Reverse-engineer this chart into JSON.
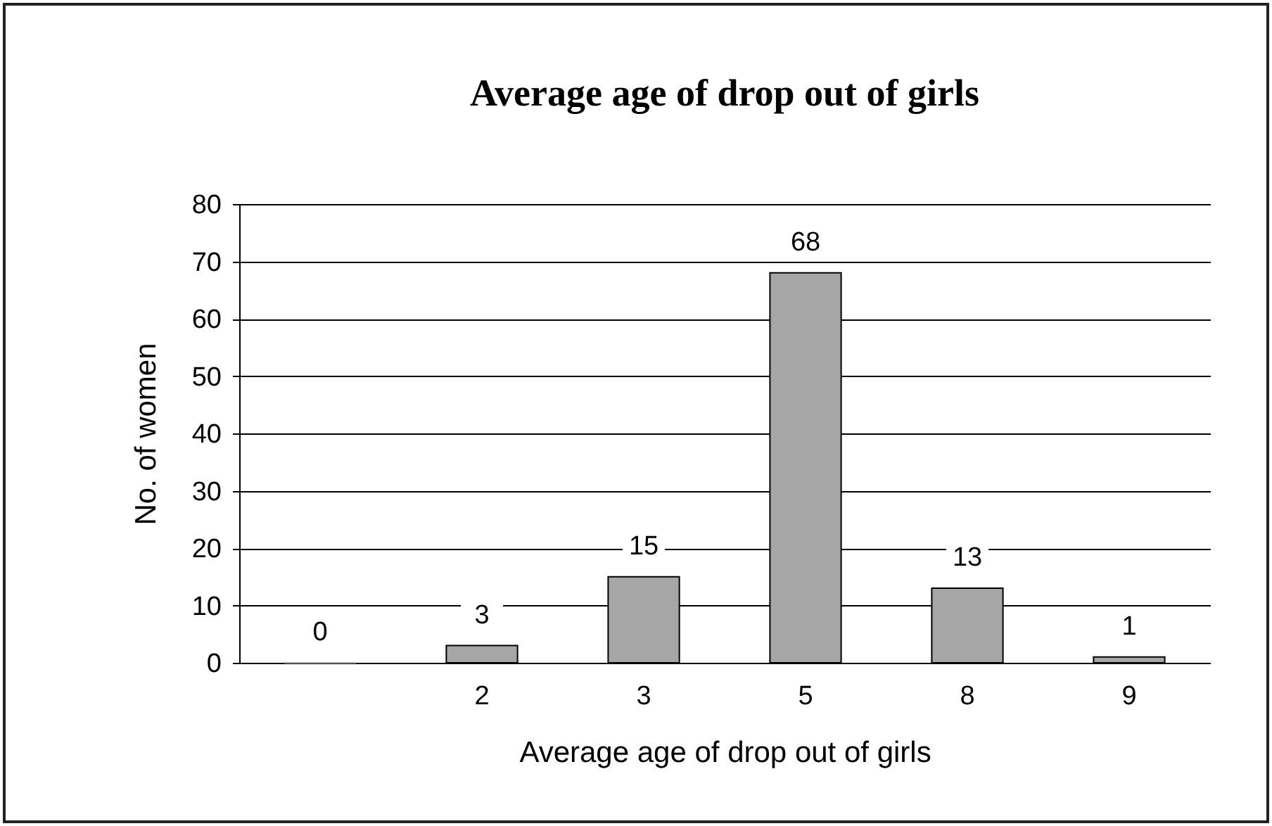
{
  "chart_data": {
    "type": "bar",
    "title": "Average age of drop out of girls",
    "xlabel": "Average age of drop out of girls",
    "ylabel": "No. of women",
    "categories": [
      null,
      "2",
      "3",
      "5",
      "8",
      "9"
    ],
    "values": [
      0,
      3,
      15,
      68,
      13,
      1
    ],
    "color": "#a6a6a6",
    "ylim": [
      0,
      80
    ],
    "yticks": [
      0,
      10,
      20,
      30,
      40,
      50,
      60,
      70,
      80
    ],
    "grid": "y",
    "data_labels": true
  }
}
